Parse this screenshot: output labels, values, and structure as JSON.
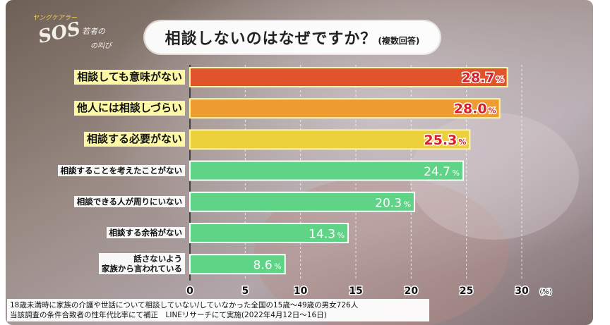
{
  "logo": {
    "text": "SOS",
    "small_top": "ヤングケアラー",
    "small_mid": "若者の",
    "small_right": "の叫び"
  },
  "title": {
    "main": "相談しないのはなぜですか？",
    "sub": "(複数回答)"
  },
  "footnote": {
    "line1": "18歳未満時に家族の介護や世話について相談していない/していなかった全国の15歳～49歳の男女726人",
    "line2": "当該調査の条件合致者の性年代比率にて補正　LINEリサーチにて実施(2022年4月12日～16日)"
  },
  "colors": {
    "bar_top1": "#e0532b",
    "bar_top2": "#ee9b32",
    "bar_top3": "#ecd03c",
    "bar_rest": "#5fd486",
    "label_red": "#d8202c"
  },
  "chart_data": {
    "type": "bar",
    "orientation": "horizontal",
    "categories": [
      "相談しても意味がない",
      "他人には相談しづらい",
      "相談する必要がない",
      "相談することを考えたことがない",
      "相談できる人が周りにいない",
      "相談する余裕がない",
      "話さないよう\n家族から言われている"
    ],
    "values": [
      28.7,
      28.0,
      25.3,
      24.7,
      20.3,
      14.3,
      8.6
    ],
    "value_suffix": "%",
    "xlim": [
      0,
      30
    ],
    "xticks": [
      0,
      5,
      10,
      15,
      20,
      25,
      30
    ],
    "xunit": "(%)",
    "grid": true
  }
}
